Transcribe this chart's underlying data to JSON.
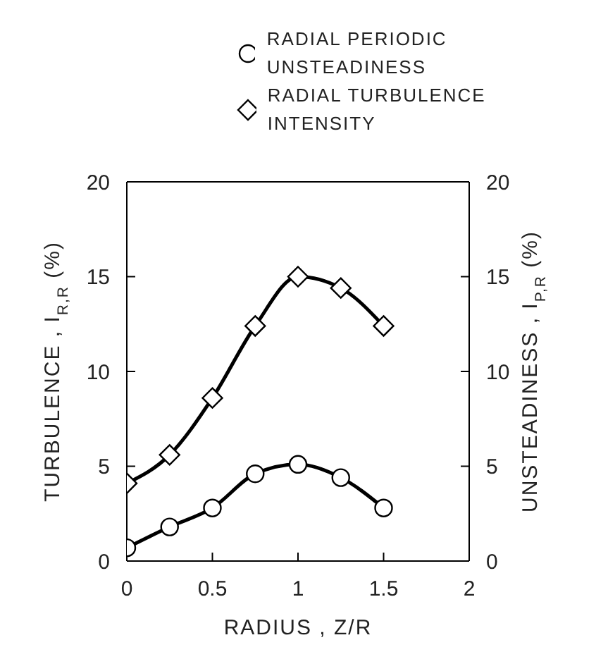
{
  "chart_data": {
    "type": "line",
    "xlabel": "RADIUS ,  Z/R",
    "ylabel": "TURBULENCE ,  I$_{R,R}$  (%)",
    "y2label": "UNSTEADINESS ,  I$_{P,R}$  (%)",
    "x": [
      0,
      0.25,
      0.5,
      0.75,
      1,
      1.25,
      1.5
    ],
    "series": [
      {
        "name": "RADIAL PERIODIC UNSTEADINESS",
        "color": "#000000",
        "marker": "circle",
        "axis": "y2",
        "values": [
          0.7,
          1.8,
          2.8,
          4.6,
          5.1,
          4.4,
          2.8
        ]
      },
      {
        "name": "RADIAL TURBULENCE INTENSITY",
        "color": "#000000",
        "marker": "diamond",
        "values": [
          4.1,
          5.6,
          8.6,
          12.4,
          15,
          14.4,
          12.4
        ]
      }
    ],
    "xlim": [
      0,
      2
    ],
    "xticks": [
      0,
      0.5,
      1,
      1.5,
      2
    ],
    "ylim": [
      0,
      20
    ],
    "yticks": [
      0,
      5,
      10,
      15,
      20
    ],
    "y2lim": [
      0,
      20
    ],
    "y2ticks": [
      0,
      5,
      10,
      15,
      20
    ],
    "legend": "top",
    "grid": false,
    "line_style": "solid"
  }
}
